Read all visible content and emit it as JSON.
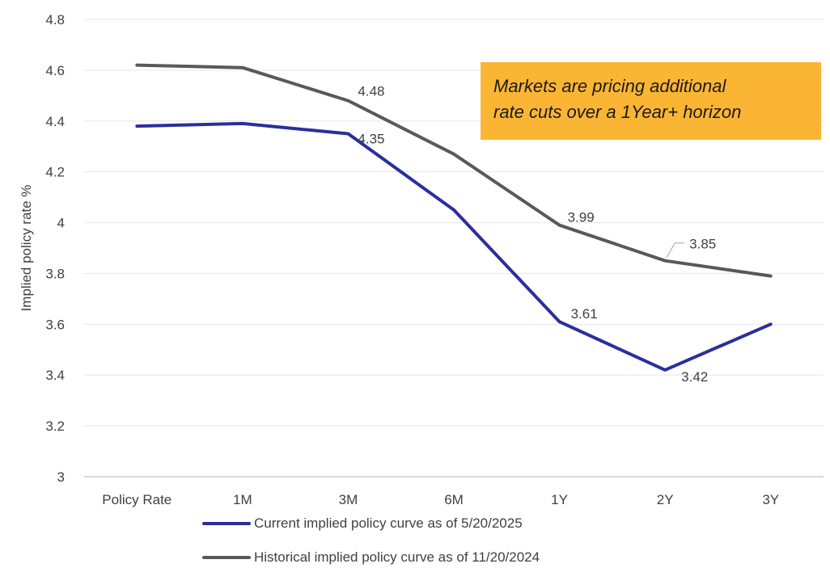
{
  "chart_data": {
    "type": "line",
    "categories": [
      "Policy Rate",
      "1M",
      "3M",
      "6M",
      "1Y",
      "2Y",
      "3Y"
    ],
    "series": [
      {
        "name": "Current implied policy curve as of 5/20/2025",
        "values": [
          4.38,
          4.39,
          4.35,
          4.05,
          3.61,
          3.42,
          3.6
        ],
        "color": "#2b2f9c",
        "labels": [
          null,
          null,
          "4.35",
          null,
          "3.61",
          "3.42",
          null
        ]
      },
      {
        "name": "Historical implied policy curve as of 11/20/2024",
        "values": [
          4.62,
          4.61,
          4.48,
          4.27,
          3.99,
          3.85,
          3.79
        ],
        "color": "#595959",
        "labels": [
          null,
          null,
          "4.48",
          null,
          "3.99",
          "3.85",
          null
        ]
      }
    ],
    "ylabel": "Implied policy rate %",
    "xlabel": "",
    "ylim": [
      3,
      4.8
    ],
    "yticks": [
      "3",
      "3.2",
      "3.4",
      "3.6",
      "3.8",
      "4",
      "4.2",
      "4.4",
      "4.6",
      "4.8"
    ],
    "grid": true,
    "legend_position": "bottom"
  },
  "callout": {
    "line1": "Markets are pricing additional",
    "line2": "rate cuts over a 1Year+ horizon",
    "color": "#fbb534"
  }
}
